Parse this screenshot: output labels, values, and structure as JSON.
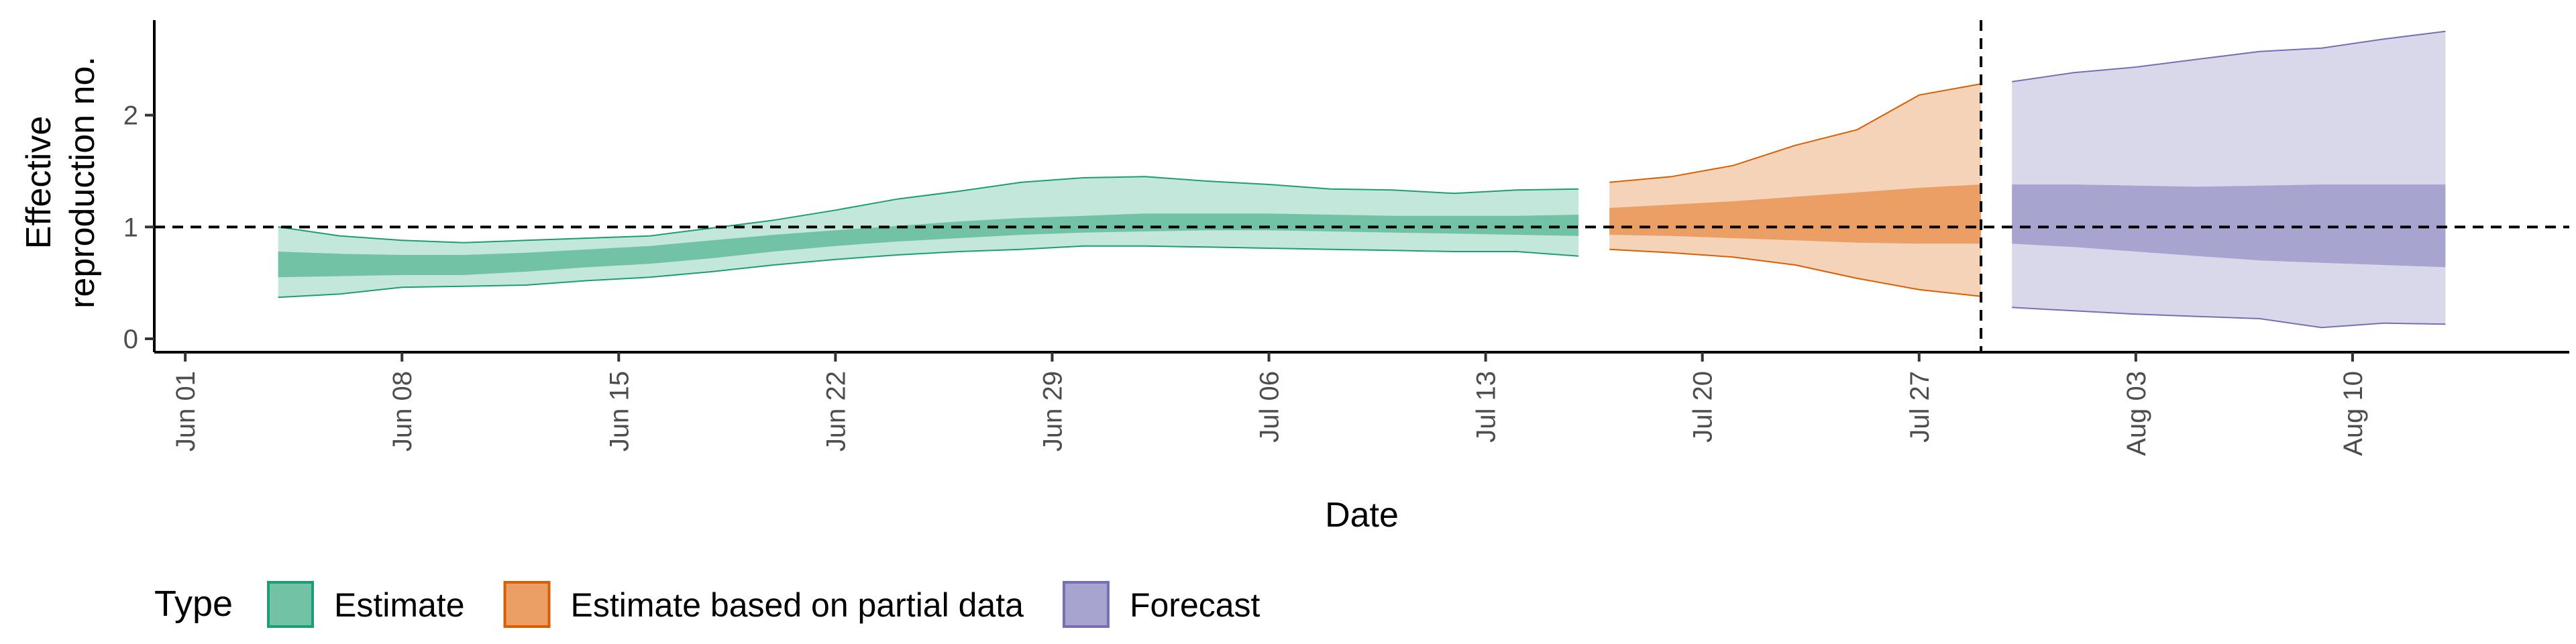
{
  "chart_data": {
    "type": "area",
    "xlabel": "Date",
    "ylabel_lines": [
      "Effective",
      "reproduction no."
    ],
    "x_domain": [
      "2020-05-31",
      "2020-08-17"
    ],
    "ylim": [
      -0.12,
      2.85
    ],
    "y_ticks": [
      0,
      1,
      2
    ],
    "x_ticks": [
      {
        "date": "2020-06-01",
        "label": "Jun 01"
      },
      {
        "date": "2020-06-08",
        "label": "Jun 08"
      },
      {
        "date": "2020-06-15",
        "label": "Jun 15"
      },
      {
        "date": "2020-06-22",
        "label": "Jun 22"
      },
      {
        "date": "2020-06-29",
        "label": "Jun 29"
      },
      {
        "date": "2020-07-06",
        "label": "Jul 06"
      },
      {
        "date": "2020-07-13",
        "label": "Jul 13"
      },
      {
        "date": "2020-07-20",
        "label": "Jul 20"
      },
      {
        "date": "2020-07-27",
        "label": "Jul 27"
      },
      {
        "date": "2020-08-03",
        "label": "Aug 03"
      },
      {
        "date": "2020-08-10",
        "label": "Aug 10"
      }
    ],
    "reference_lines": {
      "horizontal_y": 1,
      "vertical_date": "2020-07-29",
      "style": "dashed"
    },
    "grid": false,
    "legend": {
      "title": "Type",
      "position": "bottom",
      "items": [
        {
          "label": "Estimate",
          "fill": "#72c3a6",
          "stroke": "#1b9e77"
        },
        {
          "label": "Estimate based on partial data",
          "fill": "#eb9f64",
          "stroke": "#d95f02"
        },
        {
          "label": "Forecast",
          "fill": "#a7a4d0",
          "stroke": "#7570b3"
        }
      ]
    },
    "series": [
      {
        "name": "Estimate",
        "outer_color": "#c4e7db",
        "inner_color": "#72c3a6",
        "line_color": "#1b9e77",
        "dates": [
          "2020-06-04",
          "2020-06-06",
          "2020-06-08",
          "2020-06-10",
          "2020-06-12",
          "2020-06-14",
          "2020-06-16",
          "2020-06-18",
          "2020-06-20",
          "2020-06-22",
          "2020-06-24",
          "2020-06-26",
          "2020-06-28",
          "2020-06-30",
          "2020-07-02",
          "2020-07-04",
          "2020-07-06",
          "2020-07-08",
          "2020-07-10",
          "2020-07-12",
          "2020-07-14",
          "2020-07-16"
        ],
        "outer_upper": [
          1.0,
          0.92,
          0.88,
          0.86,
          0.88,
          0.9,
          0.92,
          0.99,
          1.06,
          1.15,
          1.25,
          1.32,
          1.4,
          1.44,
          1.45,
          1.41,
          1.38,
          1.34,
          1.33,
          1.3,
          1.33,
          1.34
        ],
        "inner_upper": [
          0.78,
          0.76,
          0.75,
          0.75,
          0.77,
          0.8,
          0.83,
          0.88,
          0.93,
          0.97,
          1.01,
          1.05,
          1.08,
          1.1,
          1.12,
          1.12,
          1.12,
          1.11,
          1.1,
          1.1,
          1.1,
          1.11
        ],
        "inner_lower": [
          0.55,
          0.56,
          0.57,
          0.57,
          0.6,
          0.64,
          0.67,
          0.72,
          0.78,
          0.83,
          0.87,
          0.9,
          0.93,
          0.95,
          0.96,
          0.97,
          0.97,
          0.96,
          0.95,
          0.94,
          0.93,
          0.92
        ],
        "outer_lower": [
          0.37,
          0.4,
          0.46,
          0.47,
          0.48,
          0.52,
          0.55,
          0.6,
          0.66,
          0.71,
          0.75,
          0.78,
          0.8,
          0.83,
          0.83,
          0.82,
          0.81,
          0.8,
          0.79,
          0.78,
          0.78,
          0.74
        ]
      },
      {
        "name": "Estimate based on partial data",
        "outer_color": "#f4d3b9",
        "inner_color": "#eb9f64",
        "line_color": "#d95f02",
        "dates": [
          "2020-07-17",
          "2020-07-19",
          "2020-07-21",
          "2020-07-23",
          "2020-07-25",
          "2020-07-27",
          "2020-07-29"
        ],
        "outer_upper": [
          1.4,
          1.45,
          1.55,
          1.73,
          1.87,
          2.18,
          2.28
        ],
        "inner_upper": [
          1.17,
          1.2,
          1.23,
          1.27,
          1.31,
          1.35,
          1.38
        ],
        "inner_lower": [
          0.93,
          0.92,
          0.9,
          0.88,
          0.86,
          0.85,
          0.85
        ],
        "outer_lower": [
          0.8,
          0.77,
          0.73,
          0.66,
          0.54,
          0.44,
          0.38
        ]
      },
      {
        "name": "Forecast",
        "outer_color": "#d9d8ea",
        "inner_color": "#a7a4d0",
        "line_color": "#7570b3",
        "dates": [
          "2020-07-30",
          "2020-08-01",
          "2020-08-03",
          "2020-08-05",
          "2020-08-07",
          "2020-08-09",
          "2020-08-11",
          "2020-08-13"
        ],
        "outer_upper": [
          2.3,
          2.38,
          2.43,
          2.5,
          2.57,
          2.6,
          2.68,
          2.75
        ],
        "inner_upper": [
          1.38,
          1.38,
          1.37,
          1.36,
          1.37,
          1.38,
          1.38,
          1.38
        ],
        "inner_lower": [
          0.85,
          0.82,
          0.78,
          0.74,
          0.7,
          0.68,
          0.66,
          0.64
        ],
        "outer_lower": [
          0.28,
          0.25,
          0.22,
          0.2,
          0.18,
          0.1,
          0.14,
          0.13
        ]
      }
    ]
  }
}
